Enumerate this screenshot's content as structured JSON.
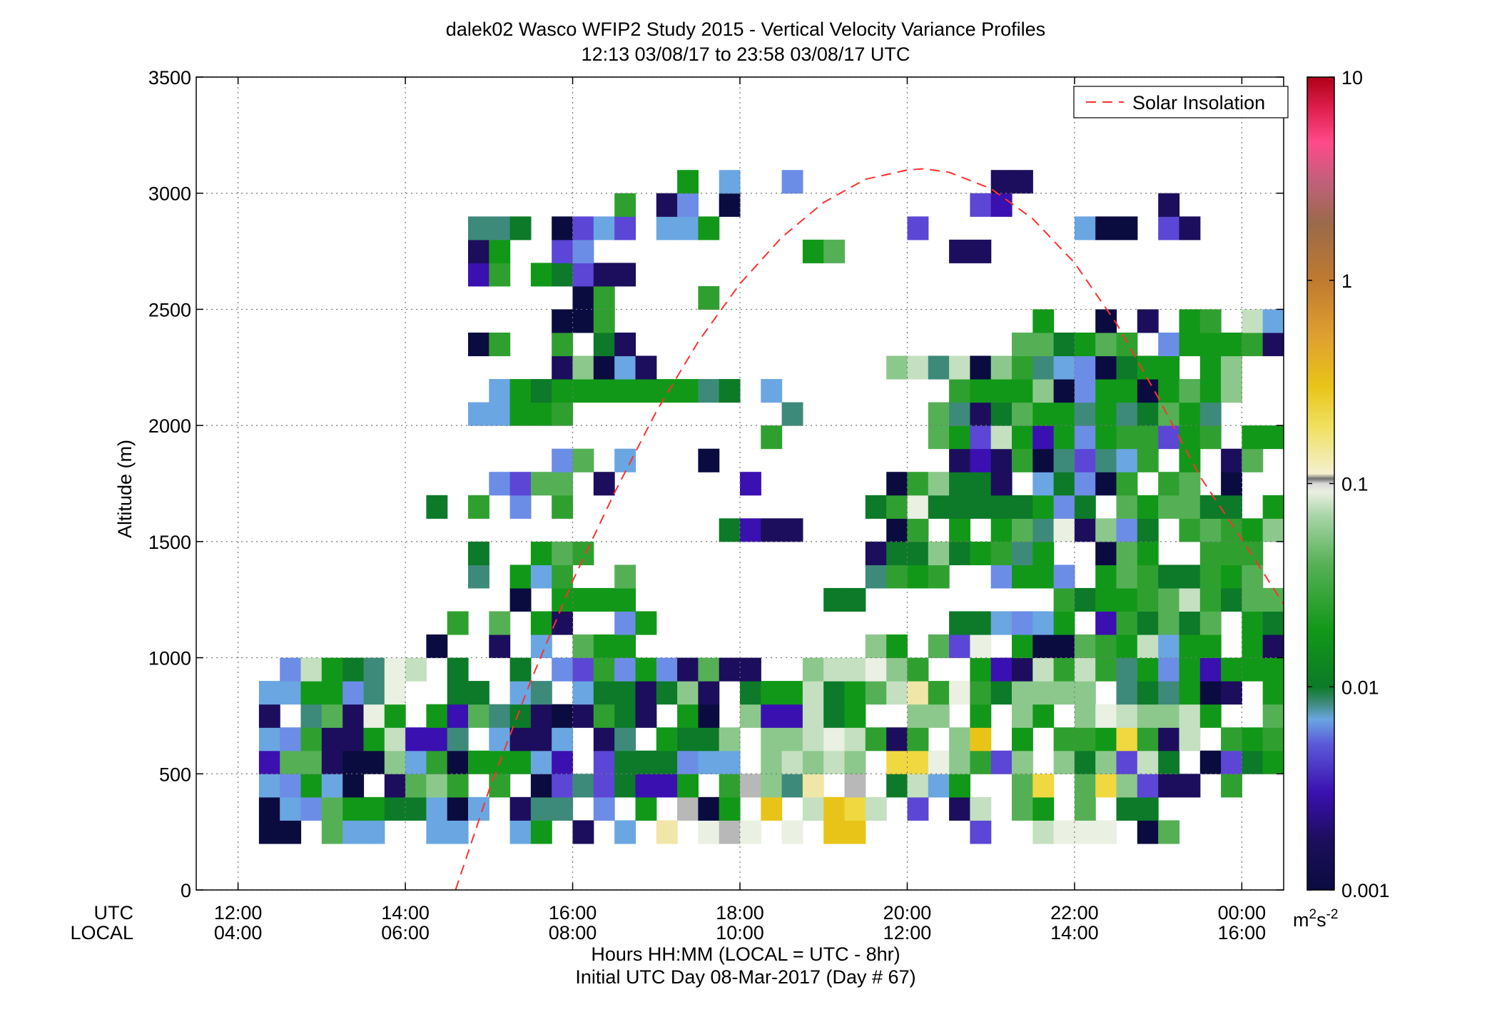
{
  "chart_data": {
    "type": "heatmap",
    "title": "dalek02 Wasco WFIP2 Study 2015 - Vertical Velocity Variance Profiles",
    "subtitle": "12:13 03/08/17 to 23:58 03/08/17  UTC",
    "ylabel": "Altitude (m)",
    "xlabel": "Hours HH:MM  (LOCAL = UTC - 8hr)",
    "xlabel2": "Initial UTC Day 08-Mar-2017 (Day # 67)",
    "row_label_utc": "UTC",
    "row_label_local": "LOCAL",
    "x_units": "hours UTC",
    "xlim": [
      11.5,
      24.5
    ],
    "ylim": [
      0,
      3500
    ],
    "grid": true,
    "x_ticks": [
      12,
      14,
      16,
      18,
      20,
      22,
      24
    ],
    "x_tick_labels_utc": [
      "12:00",
      "14:00",
      "16:00",
      "18:00",
      "20:00",
      "22:00",
      "00:00"
    ],
    "x_tick_labels_local": [
      "04:00",
      "06:00",
      "08:00",
      "10:00",
      "12:00",
      "14:00",
      "16:00"
    ],
    "y_ticks": [
      0,
      500,
      1000,
      1500,
      2000,
      2500,
      3000,
      3500
    ],
    "y_tick_labels": [
      "0",
      "500",
      "1000",
      "1500",
      "2000",
      "2500",
      "3000",
      "3500"
    ],
    "legend": {
      "entry": "Solar Insolation",
      "placement": "top-right",
      "color": "#ff3030"
    },
    "colorbar": {
      "scale": "log",
      "range": [
        0.001,
        10
      ],
      "ticks": [
        0.001,
        0.01,
        0.1,
        1,
        10
      ],
      "tick_labels": [
        "0.001",
        "0.01",
        "0.1",
        "1",
        "10"
      ],
      "units_base": "m",
      "units_exp1": "2",
      "units_mid": "s",
      "units_exp2": "-2"
    },
    "color_levels": {
      "a": "#0a0c40",
      "b": "#1c0e5c",
      "c": "#3a10b0",
      "d": "#5b46d6",
      "e": "#6c8de6",
      "f": "#6aa6e2",
      "g": "#3d8a7a",
      "h": "#0c7a28",
      "i": "#129818",
      "j": "#2fa02f",
      "k": "#55b055",
      "l": "#8cc88c",
      "m": "#c4e0c0",
      "n": "#eaf0e2",
      "o": "#f0e6a8",
      "p": "#f0d840",
      "q": "#e8c418",
      "r": "#b8b8b8"
    },
    "color_level_values": {
      "a": 0.0012,
      "b": 0.0016,
      "c": 0.0025,
      "d": 0.0035,
      "e": 0.005,
      "f": 0.006,
      "g": 0.008,
      "h": 0.011,
      "i": 0.014,
      "j": 0.02,
      "k": 0.03,
      "l": 0.045,
      "m": 0.065,
      "n": 0.085,
      "o": 0.15,
      "p": 0.22,
      "q": 0.3,
      "r": 0.11
    },
    "cell_width_hours": 0.25,
    "cell_height_m": 100,
    "grid_x0": 12.25,
    "grid_y0": 200,
    "grid_rows_bottom_up": [
      "aa.kff..ff..fi.b.f.o.nrn.n.qq.....d..mnnn.ak......k",
      "afekiihhfaf.bgg.e.i.rai.q.mqpm.d.bm.ki.k.hh......i.",
      "feifa.bklj.j.adgdhcci.jrlgo.r.hmfi..kp.kpldbb.j...",
      "ckkbaalfjaiiifc.dhhheff.lmlml.ppnljdl.lhldmh.adhi.",
      "fejbbimccg.fbbf.bg.ihhl.llmnmjbj.lq.i.jjipjbm.jiji",
      "b.gkbni.ickghbabjhb.ia.lccmhi..ll.i.li.lnmllmi..k",
      "ffiiegn..hh.fg.fhhbhlb.hiimhikmojnjhllll.ghgiab.i",
      ".emihgnm.h..h.edjeiebkbb..lmmnlj..icbmjmjgieiciii",
      "........a..b.f.kii...........li.kdn.iaakjimfii.ib.",
      ".........j.k.ib..ei..............hhfefi.cjhkhk.ih",
      "............a.iiii.........hh.........jhiijkmjhkki",
      "..........g.ifj..k...........gjij..eiie.ikjhhjik",
      "..........h..ikj.............bhhlhijgi..aki..jjj.",
      "......................hcbb....aj.i.ikgnbleh.jkjil",
      "........h.j.e.j..............hjnhhhhhieh.kikkhh.ii",
      "...........edkk.b......c......ajlhhb.fheaj.jk.a...",
      "..............ek.f...a...........bcbjagdgfjsi.bk..",
      "........................j.......kidmicieijjdij.ii.",
      "..........ffiij..........g......kgbhkiigighkig....",
      "...........fihiiiiiiigh.f........jiiilaeiiaikil..",
      "..............blafb...........lmgmaljgfeahii.il..",
      "..........aj..j.hb..................kkhikj.eiiijb",
      "..............aaj....................i..a.b.ij.mf",
      "...............aj....j..............................",
      "..........cj.ihdbb..............................",
      "..........bi..de..........ik.....bb...........",
      "..........ggh.adfd.ffi.........d.......faa.db",
      ".................j.be.a...........dc.......b.",
      "....................i.f..e.........bb..........",
      "................................................"
    ],
    "solar_insolation_curve": {
      "peak_hour": 20.2,
      "peak_altitude": 3100,
      "zero_crossing_hour": 14.6,
      "x": [
        14.6,
        15.0,
        15.5,
        16.0,
        16.5,
        17.0,
        17.5,
        18.0,
        18.5,
        19.0,
        19.5,
        20.0,
        20.2,
        20.5,
        21.0,
        21.5,
        22.0,
        22.5,
        23.0,
        23.5,
        24.0,
        24.5
      ],
      "y": [
        0,
        430,
        900,
        1330,
        1710,
        2060,
        2360,
        2610,
        2810,
        2960,
        3060,
        3100,
        3105,
        3090,
        3020,
        2890,
        2700,
        2440,
        2120,
        1780,
        1510,
        1230
      ]
    }
  }
}
